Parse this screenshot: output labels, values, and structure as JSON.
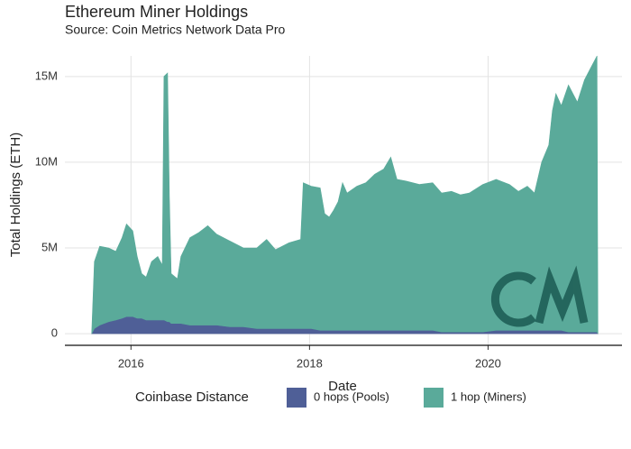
{
  "chart_data": {
    "type": "stacked_area",
    "title": "Ethereum Miner Holdings",
    "subtitle": "Source: Coin Metrics Network Data Pro",
    "x_label": "Date",
    "y_label": "Total Holdings (ETH)",
    "legend_title": "Coinbase Distance",
    "legend_position": "bottom",
    "grid": true,
    "xlim": [
      2015.26,
      2021.5
    ],
    "xticks": [
      2016,
      2018,
      2020
    ],
    "ylim": [
      -680000,
      16200000
    ],
    "yticks": [
      0,
      {
        "value": 5000000,
        "label": "5M"
      },
      {
        "value": 10000000,
        "label": "10M"
      },
      {
        "value": 15000000,
        "label": "15M"
      }
    ],
    "x": [
      2015.56,
      2015.59,
      2015.65,
      2015.75,
      2015.83,
      2015.9,
      2015.95,
      2016.02,
      2016.07,
      2016.12,
      2016.17,
      2016.23,
      2016.3,
      2016.35,
      2016.37,
      2016.41,
      2016.43,
      2016.45,
      2016.52,
      2016.56,
      2016.66,
      2016.76,
      2016.86,
      2016.96,
      2017.11,
      2017.26,
      2017.41,
      2017.52,
      2017.62,
      2017.77,
      2017.9,
      2017.93,
      2018.02,
      2018.12,
      2018.17,
      2018.22,
      2018.27,
      2018.32,
      2018.37,
      2018.42,
      2018.53,
      2018.63,
      2018.73,
      2018.83,
      2018.91,
      2018.98,
      2019.08,
      2019.23,
      2019.38,
      2019.48,
      2019.59,
      2019.69,
      2019.79,
      2019.94,
      2020.09,
      2020.24,
      2020.34,
      2020.44,
      2020.52,
      2020.6,
      2020.68,
      2020.72,
      2020.76,
      2020.82,
      2020.9,
      2021.0,
      2021.08,
      2021.15,
      2021.22,
      2021.23
    ],
    "series": [
      {
        "name": "0 hops (Pools)",
        "color": "#4f5f97",
        "values": [
          0,
          300000,
          500000,
          700000,
          800000,
          900000,
          1000000,
          1000000,
          900000,
          900000,
          800000,
          800000,
          800000,
          800000,
          800000,
          700000,
          700000,
          600000,
          600000,
          600000,
          500000,
          500000,
          500000,
          500000,
          400000,
          400000,
          300000,
          300000,
          300000,
          300000,
          300000,
          300000,
          300000,
          200000,
          200000,
          200000,
          200000,
          200000,
          200000,
          200000,
          200000,
          200000,
          200000,
          200000,
          200000,
          200000,
          200000,
          200000,
          200000,
          100000,
          100000,
          100000,
          100000,
          100000,
          200000,
          200000,
          200000,
          200000,
          200000,
          200000,
          200000,
          200000,
          200000,
          200000,
          100000,
          100000,
          100000,
          100000,
          100000,
          0
        ]
      },
      {
        "name": "1 hop (Miners)",
        "color": "#5aaa9a",
        "values": [
          0,
          3900000,
          4600000,
          4300000,
          4000000,
          4700000,
          5400000,
          5000000,
          3600000,
          2600000,
          2500000,
          3400000,
          3700000,
          3200000,
          14200000,
          14500000,
          7300000,
          2900000,
          2600000,
          3900000,
          5100000,
          5400000,
          5800000,
          5300000,
          5000000,
          4600000,
          4700000,
          5200000,
          4600000,
          5000000,
          5200000,
          8500000,
          8300000,
          8300000,
          6800000,
          6600000,
          7000000,
          7500000,
          8600000,
          8000000,
          8400000,
          8600000,
          9100000,
          9400000,
          10100000,
          8800000,
          8700000,
          8500000,
          8600000,
          8100000,
          8200000,
          8000000,
          8100000,
          8600000,
          8800000,
          8500000,
          8100000,
          8400000,
          8000000,
          9800000,
          10800000,
          12800000,
          13800000,
          13100000,
          14400000,
          13400000,
          14700000,
          15400000,
          16100000,
          0
        ]
      }
    ]
  }
}
